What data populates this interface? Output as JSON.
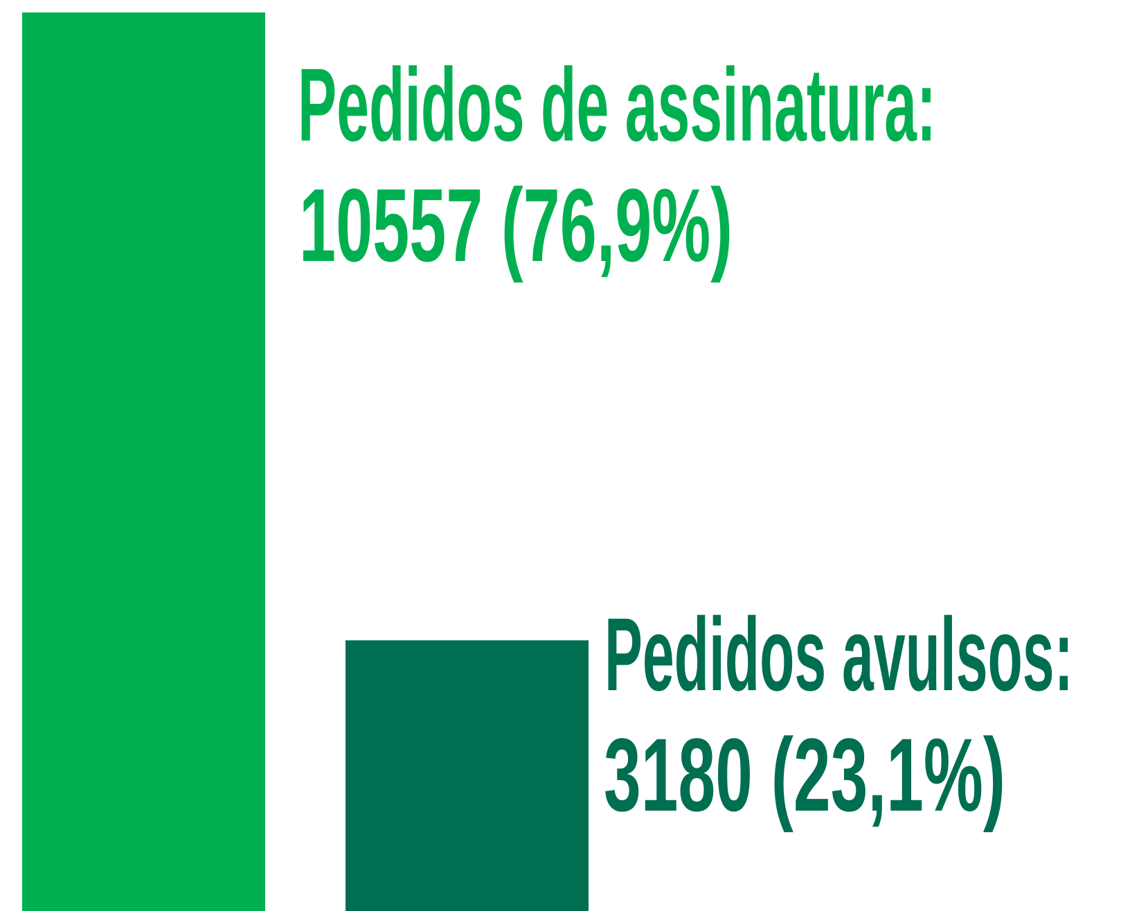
{
  "chart_data": {
    "type": "bar",
    "categories": [
      "Pedidos de assinatura:",
      "Pedidos avulsos:"
    ],
    "values": [
      10557,
      3180
    ],
    "value_labels": [
      "10557 (76,9%)",
      "3180  (23,1%)"
    ],
    "colors": [
      "#00b050",
      "#006e51"
    ]
  }
}
